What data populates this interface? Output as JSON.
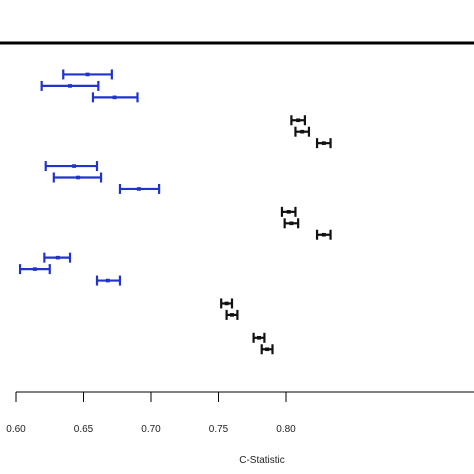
{
  "chart_data": {
    "type": "errorbar",
    "orientation": "horizontal",
    "xlabel": "C-Statistic",
    "ylabel": "",
    "title": "",
    "xlim": [
      0.6,
      0.83
    ],
    "ticks": [
      {
        "value": 0.6,
        "label": "0.60"
      },
      {
        "value": 0.65,
        "label": "0.65"
      },
      {
        "value": 0.7,
        "label": "0.70"
      },
      {
        "value": 0.75,
        "label": "0.75"
      },
      {
        "value": 0.8,
        "label": "0.80"
      }
    ],
    "grid": false,
    "legend": "none",
    "colors": {
      "blue": "#2233cc",
      "black": "#111111"
    },
    "series": [
      {
        "color": "blue",
        "points": [
          {
            "row": 1,
            "estimate": 0.653,
            "lower": 0.635,
            "upper": 0.671
          },
          {
            "row": 2,
            "estimate": 0.64,
            "lower": 0.619,
            "upper": 0.661
          },
          {
            "row": 3,
            "estimate": 0.673,
            "lower": 0.657,
            "upper": 0.69
          },
          {
            "row": 9,
            "estimate": 0.643,
            "lower": 0.622,
            "upper": 0.66
          },
          {
            "row": 10,
            "estimate": 0.646,
            "lower": 0.628,
            "upper": 0.663
          },
          {
            "row": 11,
            "estimate": 0.691,
            "lower": 0.677,
            "upper": 0.706
          },
          {
            "row": 17,
            "estimate": 0.631,
            "lower": 0.621,
            "upper": 0.64
          },
          {
            "row": 18,
            "estimate": 0.614,
            "lower": 0.603,
            "upper": 0.625
          },
          {
            "row": 19,
            "estimate": 0.668,
            "lower": 0.66,
            "upper": 0.677
          }
        ]
      },
      {
        "color": "black",
        "points": [
          {
            "row": 5,
            "estimate": 0.809,
            "lower": 0.804,
            "upper": 0.814
          },
          {
            "row": 6,
            "estimate": 0.812,
            "lower": 0.807,
            "upper": 0.817
          },
          {
            "row": 7,
            "estimate": 0.828,
            "lower": 0.823,
            "upper": 0.833
          },
          {
            "row": 13,
            "estimate": 0.802,
            "lower": 0.797,
            "upper": 0.807
          },
          {
            "row": 14,
            "estimate": 0.804,
            "lower": 0.799,
            "upper": 0.809
          },
          {
            "row": 15,
            "estimate": 0.828,
            "lower": 0.823,
            "upper": 0.833
          },
          {
            "row": 21,
            "estimate": 0.756,
            "lower": 0.752,
            "upper": 0.76
          },
          {
            "row": 22,
            "estimate": 0.76,
            "lower": 0.756,
            "upper": 0.764
          },
          {
            "row": 24,
            "estimate": 0.78,
            "lower": 0.776,
            "upper": 0.784
          },
          {
            "row": 25,
            "estimate": 0.786,
            "lower": 0.782,
            "upper": 0.79
          }
        ]
      }
    ]
  }
}
